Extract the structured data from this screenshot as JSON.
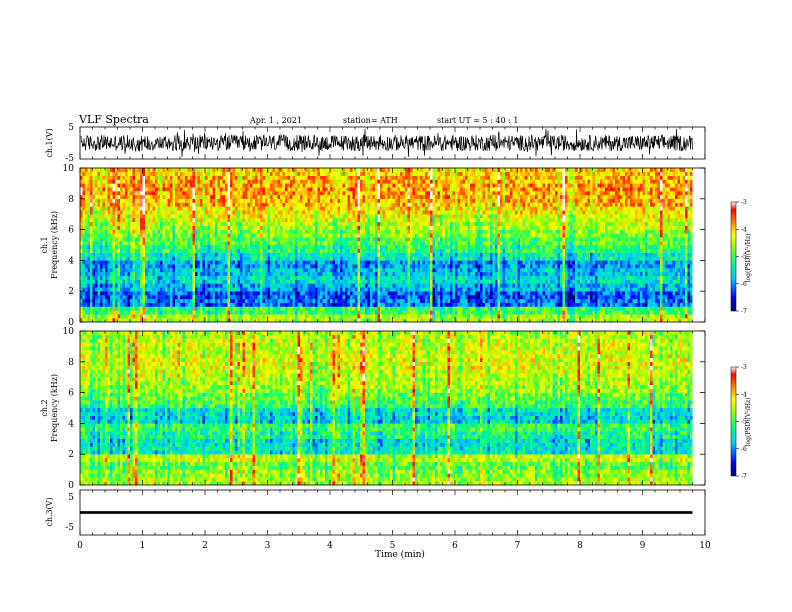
{
  "header": {
    "title": "VLF Spectra",
    "date": "Apr. 1  , 2021",
    "station": "station= ATH",
    "start": "start  UT =   5 : 40 : 1"
  },
  "panels": {
    "ch1_wave": {
      "ylabel": "ch.1(V)",
      "yticks": [
        "5",
        "-5"
      ]
    },
    "ch1_spec": {
      "ylabel_line1": "ch.1",
      "ylabel_line2": "Frequency (kHz)",
      "yticks": [
        "10",
        "8",
        "6",
        "4",
        "2",
        "0"
      ]
    },
    "ch2_spec": {
      "ylabel_line1": "ch.2",
      "ylabel_line2": "Frequency (kHz)",
      "yticks": [
        "10",
        "8",
        "6",
        "4",
        "2",
        "0"
      ]
    },
    "ch3_wave": {
      "ylabel": "ch.3(V)",
      "yticks": [
        "5",
        "-5"
      ]
    }
  },
  "colorbar": {
    "label": "log(PSD)(V²/Hz)",
    "ticks": [
      "-3",
      "-4",
      "-5",
      "-6",
      "-7"
    ],
    "colors": [
      "#000070",
      "#0000ff",
      "#00c8ff",
      "#00ff80",
      "#a0ff00",
      "#ffff00",
      "#ff8000",
      "#ff0000",
      "#ffffff"
    ]
  },
  "xaxis": {
    "label": "Time (min)",
    "ticks": [
      "0",
      "1",
      "2",
      "3",
      "4",
      "5",
      "6",
      "7",
      "8",
      "9",
      "10"
    ]
  },
  "chart_data": [
    {
      "type": "line",
      "name": "ch1 waveform",
      "ylabel": "ch.1(V)",
      "ylim": [
        -5,
        5
      ],
      "xlim": [
        0,
        10
      ],
      "x_end_min": 9.8,
      "typical_range": [
        -2.5,
        2.5
      ]
    },
    {
      "type": "heatmap",
      "name": "ch1 spectrogram",
      "xlabel": "Time (min)",
      "ylabel": "Frequency (kHz)",
      "xlim": [
        0,
        10
      ],
      "ylim": [
        0,
        10
      ],
      "x_end_min": 9.8,
      "zlim": [
        -7,
        -3
      ],
      "freq_kHz": [
        0.25,
        0.75,
        1.25,
        1.75,
        2.25,
        2.75,
        3.25,
        3.75,
        4.25,
        4.75,
        5.25,
        5.75,
        6.25,
        6.75,
        7.25,
        7.75,
        8.25,
        8.75,
        9.25,
        9.75
      ],
      "mean_log_psd": [
        -4.5,
        -5.0,
        -6.1,
        -6.2,
        -5.8,
        -5.5,
        -5.7,
        -5.9,
        -5.4,
        -5.1,
        -4.9,
        -4.7,
        -4.5,
        -4.3,
        -4.1,
        -3.9,
        -3.8,
        -3.8,
        -3.9,
        -4.0
      ]
    },
    {
      "type": "heatmap",
      "name": "ch2 spectrogram",
      "xlabel": "Time (min)",
      "ylabel": "Frequency (kHz)",
      "xlim": [
        0,
        10
      ],
      "ylim": [
        0,
        10
      ],
      "x_end_min": 9.8,
      "zlim": [
        -7,
        -3
      ],
      "freq_kHz": [
        0.25,
        0.75,
        1.25,
        1.75,
        2.25,
        2.75,
        3.25,
        3.75,
        4.25,
        4.75,
        5.25,
        5.75,
        6.25,
        6.75,
        7.25,
        7.75,
        8.25,
        8.75,
        9.25,
        9.75
      ],
      "mean_log_psd": [
        -4.5,
        -4.6,
        -4.8,
        -4.4,
        -5.4,
        -5.5,
        -5.2,
        -5.0,
        -5.6,
        -5.5,
        -5.0,
        -4.8,
        -4.6,
        -4.5,
        -4.4,
        -4.3,
        -4.3,
        -4.4,
        -4.4,
        -4.5
      ]
    },
    {
      "type": "line",
      "name": "ch3 waveform",
      "ylabel": "ch.3(V)",
      "ylim": [
        -5,
        5
      ],
      "xlim": [
        0,
        10
      ],
      "x_end_min": 9.8,
      "typical_range": [
        -0.3,
        0.3
      ]
    }
  ]
}
